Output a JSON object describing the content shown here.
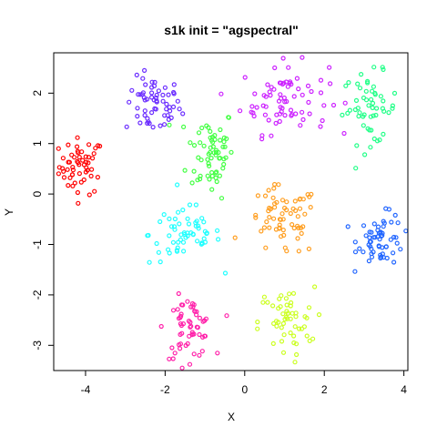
{
  "chart_data": {
    "type": "scatter",
    "title": "s1k init = \"agspectral\"",
    "xlabel": "X",
    "ylabel": "Y",
    "xlim": [
      -4.8,
      4.1
    ],
    "ylim": [
      -3.5,
      2.8
    ],
    "xticks": [
      -4,
      -2,
      0,
      2,
      4
    ],
    "yticks": [
      -3,
      -2,
      -1,
      0,
      1,
      2
    ],
    "grid": false,
    "legend": "none",
    "clusters": [
      {
        "color": "#ff0000",
        "center": [
          -4.1,
          0.55
        ],
        "spread": [
          0.28,
          0.28
        ],
        "count": 55
      },
      {
        "color": "#6a2cff",
        "center": [
          -2.3,
          1.75
        ],
        "spread": [
          0.35,
          0.28
        ],
        "count": 60
      },
      {
        "color": "#44ff44",
        "center": [
          -0.85,
          0.85
        ],
        "spread": [
          0.3,
          0.45
        ],
        "count": 65
      },
      {
        "color": "#cc22ff",
        "center": [
          1.0,
          1.9
        ],
        "spread": [
          0.55,
          0.35
        ],
        "count": 75
      },
      {
        "color": "#22ff88",
        "center": [
          3.15,
          1.7
        ],
        "spread": [
          0.35,
          0.35
        ],
        "count": 55
      },
      {
        "color": "#22ffff",
        "center": [
          -1.5,
          -0.8
        ],
        "spread": [
          0.45,
          0.3
        ],
        "count": 60
      },
      {
        "color": "#ff9f22",
        "center": [
          0.95,
          -0.55
        ],
        "spread": [
          0.45,
          0.35
        ],
        "count": 65
      },
      {
        "color": "#2266ff",
        "center": [
          3.45,
          -0.9
        ],
        "spread": [
          0.3,
          0.25
        ],
        "count": 60
      },
      {
        "color": "#ff22aa",
        "center": [
          -1.4,
          -2.65
        ],
        "spread": [
          0.3,
          0.3
        ],
        "count": 60
      },
      {
        "color": "#ccff22",
        "center": [
          1.05,
          -2.55
        ],
        "spread": [
          0.35,
          0.35
        ],
        "count": 55
      }
    ]
  }
}
